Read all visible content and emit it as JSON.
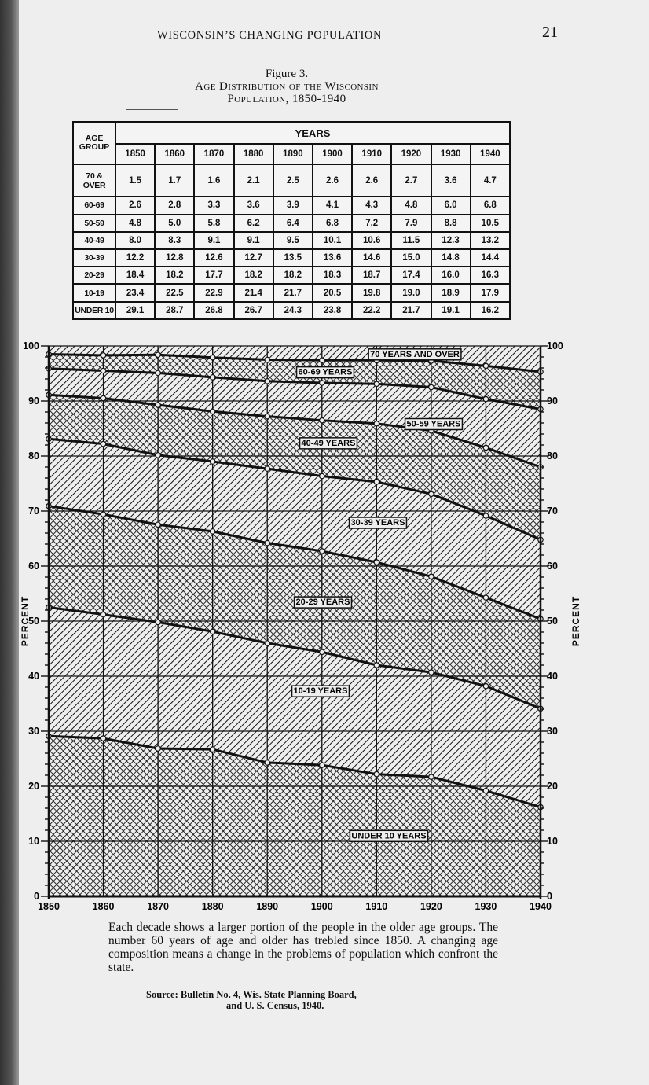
{
  "running_head": "WISCONSIN’S CHANGING POPULATION",
  "page_number": "21",
  "figure": {
    "number": "Figure 3.",
    "title_line1": "Age Distribution of the Wisconsin",
    "title_line2": "Population, 1850-1940"
  },
  "table": {
    "corner_label": "AGE GROUP",
    "years_label": "YEARS",
    "years": [
      "1850",
      "1860",
      "1870",
      "1880",
      "1890",
      "1900",
      "1910",
      "1920",
      "1930",
      "1940"
    ],
    "rows": [
      {
        "group": "70 & OVER",
        "values": [
          "1.5",
          "1.7",
          "1.6",
          "2.1",
          "2.5",
          "2.6",
          "2.6",
          "2.7",
          "3.6",
          "4.7"
        ]
      },
      {
        "group": "60-69",
        "values": [
          "2.6",
          "2.8",
          "3.3",
          "3.6",
          "3.9",
          "4.1",
          "4.3",
          "4.8",
          "6.0",
          "6.8"
        ]
      },
      {
        "group": "50-59",
        "values": [
          "4.8",
          "5.0",
          "5.8",
          "6.2",
          "6.4",
          "6.8",
          "7.2",
          "7.9",
          "8.8",
          "10.5"
        ]
      },
      {
        "group": "40-49",
        "values": [
          "8.0",
          "8.3",
          "9.1",
          "9.1",
          "9.5",
          "10.1",
          "10.6",
          "11.5",
          "12.3",
          "13.2"
        ]
      },
      {
        "group": "30-39",
        "values": [
          "12.2",
          "12.8",
          "12.6",
          "12.7",
          "13.5",
          "13.6",
          "14.6",
          "15.0",
          "14.8",
          "14.4"
        ]
      },
      {
        "group": "20-29",
        "values": [
          "18.4",
          "18.2",
          "17.7",
          "18.2",
          "18.2",
          "18.3",
          "18.7",
          "17.4",
          "16.0",
          "16.3"
        ]
      },
      {
        "group": "10-19",
        "values": [
          "23.4",
          "22.5",
          "22.9",
          "21.4",
          "21.7",
          "20.5",
          "19.8",
          "19.0",
          "18.9",
          "17.9"
        ]
      },
      {
        "group": "UNDER 10",
        "values": [
          "29.1",
          "28.7",
          "26.8",
          "26.7",
          "24.3",
          "23.8",
          "22.2",
          "21.7",
          "19.1",
          "16.2"
        ]
      }
    ]
  },
  "chart_data": {
    "type": "area",
    "stacked": true,
    "x": [
      1850,
      1860,
      1870,
      1880,
      1890,
      1900,
      1910,
      1920,
      1930,
      1940
    ],
    "xlim": [
      1850,
      1940
    ],
    "ylim": [
      0,
      100
    ],
    "yticks": [
      0,
      10,
      20,
      30,
      40,
      50,
      60,
      70,
      80,
      90,
      100
    ],
    "ylabel": "PERCENT",
    "grid": true,
    "series": [
      {
        "name": "UNDER 10 YEARS",
        "values": [
          29.1,
          28.7,
          26.8,
          26.7,
          24.3,
          23.8,
          22.2,
          21.7,
          19.1,
          16.2
        ],
        "fill": "crosshatch"
      },
      {
        "name": "10-19 YEARS",
        "values": [
          23.4,
          22.5,
          22.9,
          21.4,
          21.7,
          20.5,
          19.8,
          19.0,
          18.9,
          17.9
        ],
        "fill": "diagonal"
      },
      {
        "name": "20-29 YEARS",
        "values": [
          18.4,
          18.2,
          17.7,
          18.2,
          18.2,
          18.3,
          18.7,
          17.4,
          16.0,
          16.3
        ],
        "fill": "crosshatch"
      },
      {
        "name": "30-39 YEARS",
        "values": [
          12.2,
          12.8,
          12.6,
          12.7,
          13.5,
          13.6,
          14.6,
          15.0,
          14.8,
          14.4
        ],
        "fill": "diagonal"
      },
      {
        "name": "40-49 YEARS",
        "values": [
          8.0,
          8.3,
          9.1,
          9.1,
          9.5,
          10.1,
          10.6,
          11.5,
          12.3,
          13.2
        ],
        "fill": "crosshatch"
      },
      {
        "name": "50-59 YEARS",
        "values": [
          4.8,
          5.0,
          5.8,
          6.2,
          6.4,
          6.8,
          7.2,
          7.9,
          8.8,
          10.5
        ],
        "fill": "diagonal"
      },
      {
        "name": "60-69 YEARS",
        "values": [
          2.6,
          2.8,
          3.3,
          3.6,
          3.9,
          4.1,
          4.3,
          4.8,
          6.0,
          6.8
        ],
        "fill": "crosshatch"
      },
      {
        "name": "70 YEARS AND OVER",
        "values": [
          1.5,
          1.7,
          1.6,
          2.1,
          2.5,
          2.6,
          2.6,
          2.7,
          3.6,
          4.7
        ],
        "fill": "diagonal"
      }
    ],
    "colors": {
      "ink": "#111111",
      "paper": "#eeeeee"
    }
  },
  "caption": "Each decade shows a larger portion of the people in the older age groups. The number 60 years of age and older has trebled since 1850. A changing age composition means a change in the problems of population which confront the state.",
  "source_line1": "Source: Bulletin No. 4, Wis. State Planning Board,",
  "source_line2": "and U. S. Census, 1940."
}
